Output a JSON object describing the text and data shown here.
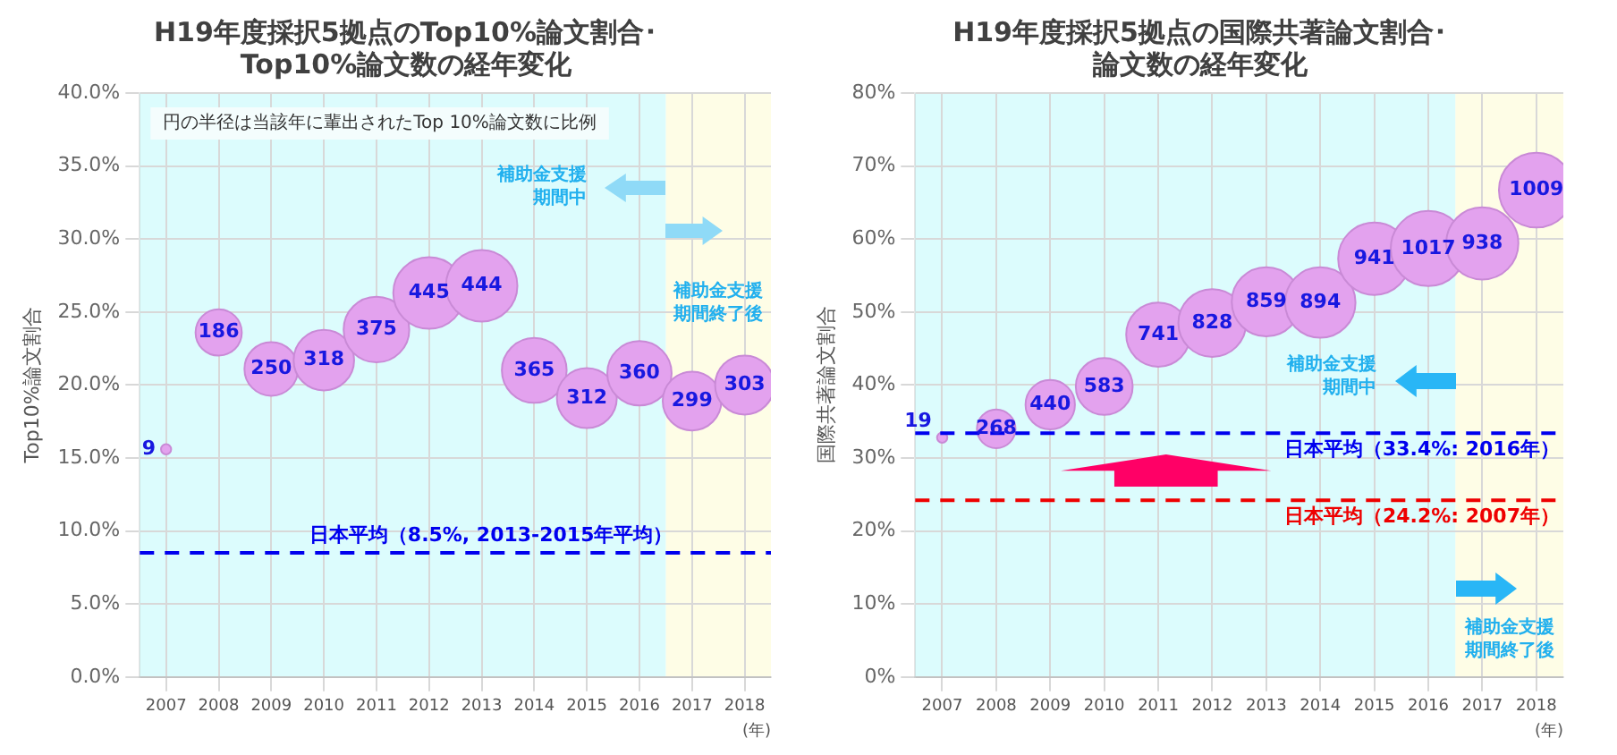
{
  "chart_data": [
    {
      "type": "bubble",
      "title": "H19年度採択5拠点のTop10%論文割合･Top10%論文数の経年変化",
      "ylabel": "Top10%論文割合",
      "xlabel": "(年)",
      "categories": [
        "2007",
        "2008",
        "2009",
        "2010",
        "2011",
        "2012",
        "2013",
        "2014",
        "2015",
        "2016",
        "2017",
        "2018"
      ],
      "values": [
        15.6,
        23.6,
        21.1,
        21.7,
        23.8,
        26.3,
        26.8,
        21.0,
        19.1,
        20.8,
        18.9,
        20.0
      ],
      "sizes": [
        9,
        186,
        250,
        318,
        375,
        445,
        444,
        365,
        312,
        360,
        299,
        303
      ],
      "value_labels": [
        "9",
        "186",
        "250",
        "318",
        "375",
        "445",
        "444",
        "365",
        "312",
        "360",
        "299",
        "303"
      ],
      "color": "#e3a2ee",
      "ylim": [
        0,
        40
      ],
      "yticks": [
        {
          "value": 0,
          "label": "0.0%"
        },
        {
          "value": 5,
          "label": "5.0%"
        },
        {
          "value": 10,
          "label": "10.0%"
        },
        {
          "value": 15,
          "label": "15.0%"
        },
        {
          "value": 20,
          "label": "20.0%"
        },
        {
          "value": 25,
          "label": "25.0%"
        },
        {
          "value": 30,
          "label": "30.0%"
        },
        {
          "value": 35,
          "label": "35.0%"
        },
        {
          "value": 40,
          "label": "40.0%"
        }
      ],
      "grid": true,
      "ref_lines": [
        {
          "axis": "y",
          "value": 8.5,
          "label": "日本平均（8.5%, 2013-2015年平均）",
          "color": "#0000ee",
          "line_style": "dashed"
        }
      ],
      "bands": [
        {
          "axis": "x",
          "from": "2007",
          "to": "2016",
          "label": "補助金支援期間中",
          "color": "#dcfcfd"
        },
        {
          "axis": "x",
          "from": "2017",
          "to": "2018",
          "label": "補助金支援期間終了後",
          "color": "#fefde6"
        }
      ],
      "annotations": [
        "円の半径は当該年に輩出されたTop 10%論文数に比例"
      ]
    },
    {
      "type": "bubble",
      "title": "H19年度採択5拠点の国際共著論文割合･論文数の経年変化",
      "ylabel": "国際共著論文割合",
      "xlabel": "(年)",
      "categories": [
        "2007",
        "2008",
        "2009",
        "2010",
        "2011",
        "2012",
        "2013",
        "2014",
        "2015",
        "2016",
        "2017",
        "2018"
      ],
      "values": [
        32.8,
        34.0,
        37.3,
        39.8,
        46.9,
        48.5,
        51.4,
        51.3,
        57.3,
        58.7,
        59.4,
        66.7
      ],
      "sizes": [
        19,
        268,
        440,
        583,
        741,
        828,
        859,
        894,
        941,
        1017,
        938,
        1009
      ],
      "value_labels": [
        "19",
        "268",
        "440",
        "583",
        "741",
        "828",
        "859",
        "894",
        "941",
        "1017",
        "938",
        "1009"
      ],
      "color": "#e3a2ee",
      "ylim": [
        0,
        80
      ],
      "yticks": [
        {
          "value": 0,
          "label": "0%"
        },
        {
          "value": 10,
          "label": "10%"
        },
        {
          "value": 20,
          "label": "20%"
        },
        {
          "value": 30,
          "label": "30%"
        },
        {
          "value": 40,
          "label": "40%"
        },
        {
          "value": 50,
          "label": "50%"
        },
        {
          "value": 60,
          "label": "60%"
        },
        {
          "value": 70,
          "label": "70%"
        },
        {
          "value": 80,
          "label": "80%"
        }
      ],
      "grid": true,
      "ref_lines": [
        {
          "axis": "y",
          "value": 33.4,
          "label": "日本平均（33.4%: 2016年）",
          "color": "#0000ee",
          "line_style": "dashed"
        },
        {
          "axis": "y",
          "value": 24.2,
          "label": "日本平均（24.2%: 2007年）",
          "color": "#ee0000",
          "line_style": "dashed"
        }
      ],
      "bands": [
        {
          "axis": "x",
          "from": "2007",
          "to": "2016",
          "label": "補助金支援期間中",
          "color": "#dcfcfd"
        },
        {
          "axis": "x",
          "from": "2017",
          "to": "2018",
          "label": "補助金支援期間終了後",
          "color": "#fefde6"
        }
      ]
    }
  ]
}
